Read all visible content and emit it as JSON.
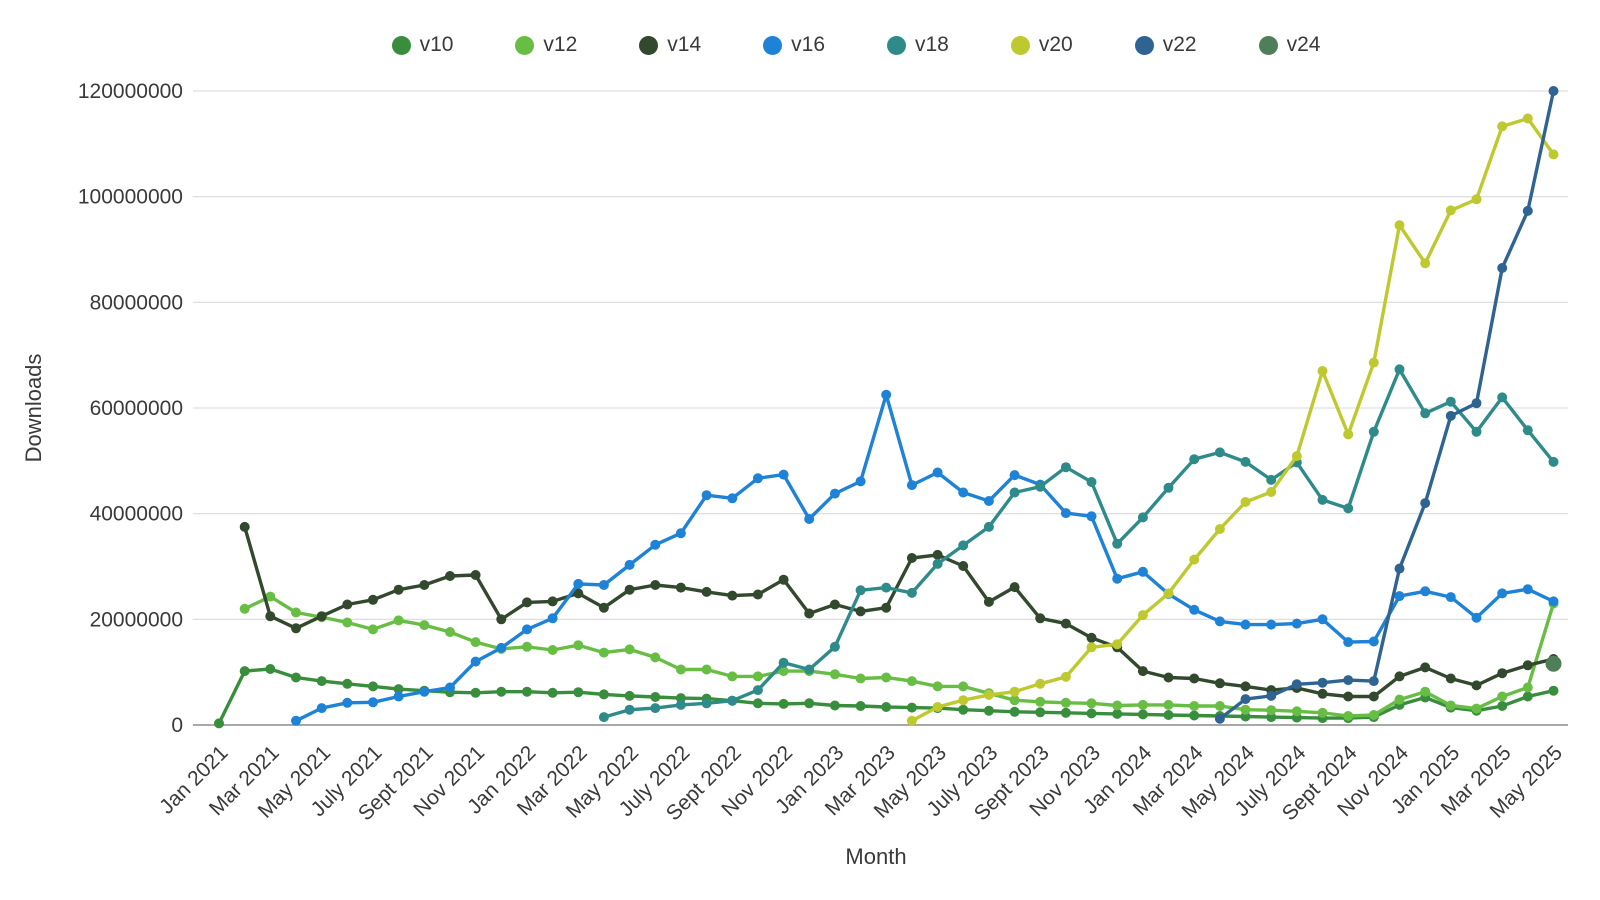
{
  "chart_data": {
    "type": "line",
    "title": "",
    "xlabel": "Month",
    "ylabel": "Downloads",
    "legend_position": "top",
    "grid": "horizontal",
    "ylim": [
      0,
      120000000
    ],
    "y_ticks": [
      0,
      20000000,
      40000000,
      60000000,
      80000000,
      100000000,
      120000000
    ],
    "x_points_total": 53,
    "x_tick_every": 2,
    "x_range_note": "monthly points from Jan 2021 to May 2025",
    "x_tick_labels": [
      "Jan 2021",
      "Mar 2021",
      "May 2021",
      "July 2021",
      "Sept 2021",
      "Nov 2021",
      "Jan 2022",
      "Mar 2022",
      "May 2022",
      "July 2022",
      "Sept 2022",
      "Nov 2022",
      "Jan 2023",
      "Mar 2023",
      "May 2023",
      "July 2023",
      "Sept 2023",
      "Nov 2023",
      "Jan 2024",
      "Mar 2024",
      "May 2024",
      "July 2024",
      "Sept 2024",
      "Nov 2024",
      "Jan 2025",
      "Mar 2025",
      "May 2025"
    ],
    "series": [
      {
        "name": "v10",
        "color": "#388e3c",
        "values": [
          300000,
          10200000,
          10600000,
          9000000,
          8300000,
          7800000,
          7300000,
          6800000,
          6500000,
          6200000,
          6100000,
          6300000,
          6300000,
          6100000,
          6200000,
          5800000,
          5500000,
          5300000,
          5100000,
          5000000,
          4600000,
          4100000,
          4000000,
          4100000,
          3700000,
          3600000,
          3400000,
          3300000,
          3200000,
          2900000,
          2700000,
          2500000,
          2400000,
          2300000,
          2200000,
          2100000,
          2000000,
          1900000,
          1800000,
          1700000,
          1600000,
          1500000,
          1400000,
          1300000,
          1300000,
          1500000,
          3800000,
          5200000,
          3300000,
          2700000,
          3600000,
          5400000,
          6500000
        ]
      },
      {
        "name": "v12",
        "color": "#68bd45",
        "values": [
          null,
          22000000,
          24300000,
          21300000,
          20400000,
          19400000,
          18100000,
          19800000,
          18900000,
          17600000,
          15700000,
          14400000,
          14800000,
          14200000,
          15100000,
          13700000,
          14300000,
          12800000,
          10500000,
          10500000,
          9200000,
          9200000,
          10200000,
          10200000,
          9600000,
          8800000,
          9000000,
          8300000,
          7300000,
          7300000,
          6000000,
          4700000,
          4400000,
          4200000,
          4100000,
          3700000,
          3800000,
          3800000,
          3600000,
          3600000,
          2900000,
          2800000,
          2600000,
          2300000,
          1700000,
          1900000,
          4800000,
          6300000,
          3700000,
          3100000,
          5400000,
          7100000,
          23000000
        ]
      },
      {
        "name": "v14",
        "color": "#32492e",
        "values": [
          null,
          37500000,
          20600000,
          18300000,
          20600000,
          22800000,
          23700000,
          25600000,
          26500000,
          28200000,
          28400000,
          20000000,
          23200000,
          23400000,
          24900000,
          22200000,
          25600000,
          26500000,
          26000000,
          25200000,
          24500000,
          24700000,
          27500000,
          21100000,
          22800000,
          21500000,
          22200000,
          31600000,
          32200000,
          30100000,
          23300000,
          26100000,
          20200000,
          19200000,
          16500000,
          14700000,
          10200000,
          9000000,
          8800000,
          7900000,
          7300000,
          6600000,
          7000000,
          5900000,
          5400000,
          5400000,
          9200000,
          10900000,
          8800000,
          7500000,
          9800000,
          11300000,
          12500000
        ]
      },
      {
        "name": "v16",
        "color": "#1e82d6",
        "values": [
          null,
          null,
          null,
          800000,
          3200000,
          4200000,
          4300000,
          5400000,
          6300000,
          7100000,
          12000000,
          14600000,
          18100000,
          20200000,
          26700000,
          26500000,
          30300000,
          34100000,
          36300000,
          43500000,
          42900000,
          46700000,
          47400000,
          39000000,
          43800000,
          46100000,
          62500000,
          45400000,
          47800000,
          44000000,
          42400000,
          47300000,
          45500000,
          40100000,
          39500000,
          27700000,
          29000000,
          24800000,
          21800000,
          19600000,
          19000000,
          19000000,
          19200000,
          20000000,
          15700000,
          15800000,
          24400000,
          25300000,
          24200000,
          20300000,
          24900000,
          25700000,
          23400000
        ]
      },
      {
        "name": "v18",
        "color": "#2e8b8a",
        "values": [
          null,
          null,
          null,
          null,
          null,
          null,
          null,
          null,
          null,
          null,
          null,
          null,
          null,
          null,
          null,
          1500000,
          2900000,
          3200000,
          3800000,
          4100000,
          4600000,
          6600000,
          11800000,
          10500000,
          14800000,
          25500000,
          26000000,
          25000000,
          30500000,
          34000000,
          37500000,
          44000000,
          45100000,
          48800000,
          46000000,
          34300000,
          39300000,
          44900000,
          50300000,
          51600000,
          49800000,
          46400000,
          49700000,
          42600000,
          41000000,
          55500000,
          67300000,
          59000000,
          61200000,
          55500000,
          62000000,
          55800000,
          49800000
        ]
      },
      {
        "name": "v20",
        "color": "#bdc92f",
        "values": [
          null,
          null,
          null,
          null,
          null,
          null,
          null,
          null,
          null,
          null,
          null,
          null,
          null,
          null,
          null,
          null,
          null,
          null,
          null,
          null,
          null,
          null,
          null,
          null,
          null,
          null,
          null,
          800000,
          3400000,
          4700000,
          5700000,
          6300000,
          7800000,
          9100000,
          14700000,
          15300000,
          20800000,
          24900000,
          31300000,
          37100000,
          42200000,
          44100000,
          50900000,
          67000000,
          55000000,
          68600000,
          94600000,
          87400000,
          97400000,
          99500000,
          113300000,
          114800000,
          108000000
        ]
      },
      {
        "name": "v22",
        "color": "#2f6492",
        "values": [
          null,
          null,
          null,
          null,
          null,
          null,
          null,
          null,
          null,
          null,
          null,
          null,
          null,
          null,
          null,
          null,
          null,
          null,
          null,
          null,
          null,
          null,
          null,
          null,
          null,
          null,
          null,
          null,
          null,
          null,
          null,
          null,
          null,
          null,
          null,
          null,
          null,
          null,
          null,
          1200000,
          4900000,
          5500000,
          7700000,
          8000000,
          8500000,
          8300000,
          29600000,
          42000000,
          58500000,
          60900000,
          86500000,
          97300000,
          120000000
        ]
      },
      {
        "name": "v24",
        "color": "#4f7f58",
        "values": [
          null,
          null,
          null,
          null,
          null,
          null,
          null,
          null,
          null,
          null,
          null,
          null,
          null,
          null,
          null,
          null,
          null,
          null,
          null,
          null,
          null,
          null,
          null,
          null,
          null,
          null,
          null,
          null,
          null,
          null,
          null,
          null,
          null,
          null,
          null,
          null,
          null,
          null,
          null,
          null,
          null,
          null,
          null,
          null,
          null,
          null,
          null,
          null,
          null,
          null,
          null,
          null,
          11600000
        ]
      }
    ],
    "style": {
      "grid_color": "#dadada",
      "axis_color": "#8c8c8c",
      "text_color": "#3a3a3a",
      "line_width": 3.4,
      "point_radius": 5,
      "single_point_radius": 8
    }
  }
}
